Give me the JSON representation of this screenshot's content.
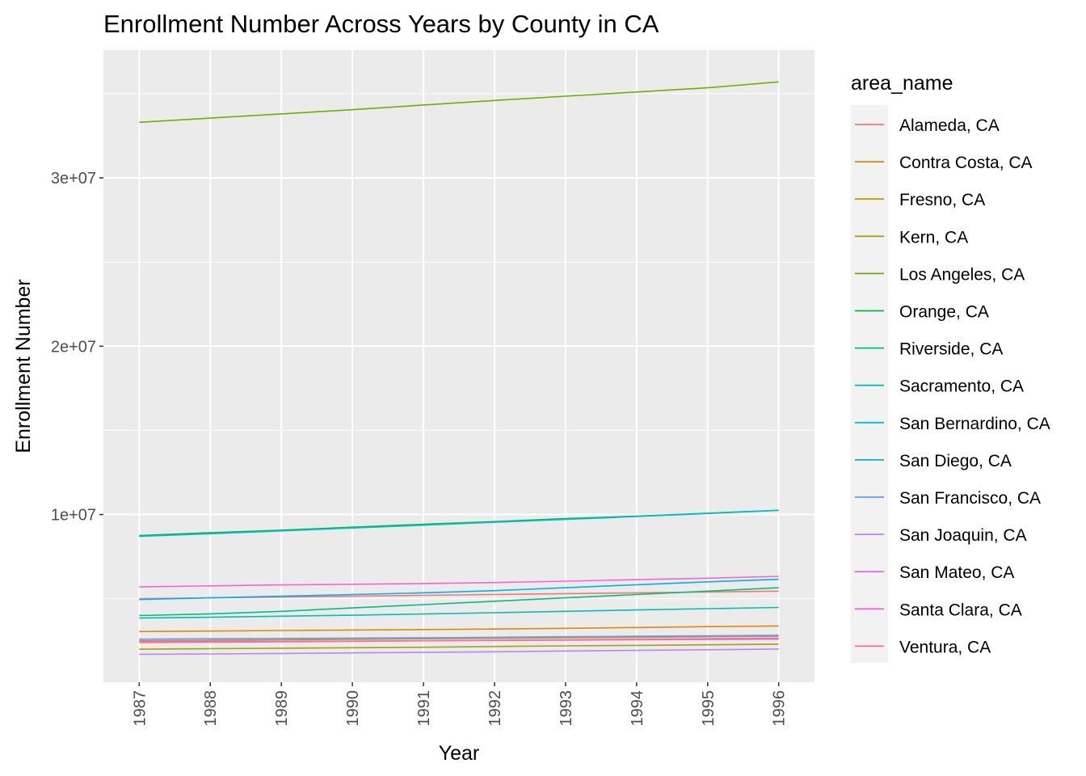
{
  "chart_data": {
    "type": "line",
    "title": "Enrollment Number Across Years by County in CA",
    "xlabel": "Year",
    "ylabel": "Enrollment Number",
    "x": [
      1987,
      1988,
      1989,
      1990,
      1991,
      1992,
      1993,
      1994,
      1995,
      1996
    ],
    "x_tick_labels": [
      "1987",
      "1988",
      "1989",
      "1990",
      "1991",
      "1992",
      "1993",
      "1994",
      "1995",
      "1996"
    ],
    "y_ticks": [
      10000000,
      20000000,
      30000000
    ],
    "y_tick_labels": [
      "1e+07",
      "2e+07",
      "3e+07"
    ],
    "ylim": [
      0,
      36000000
    ],
    "grid": true,
    "legend_title": "area_name",
    "legend_position": "right",
    "series": [
      {
        "name": "Alameda, CA",
        "color": "#F8766D",
        "values": [
          5000000,
          5050000,
          5100000,
          5150000,
          5200000,
          5250000,
          5300000,
          5350000,
          5400000,
          5450000
        ]
      },
      {
        "name": "Contra Costa, CA",
        "color": "#E58700",
        "values": [
          3050000,
          3080000,
          3110000,
          3140000,
          3170000,
          3200000,
          3240000,
          3290000,
          3340000,
          3380000
        ]
      },
      {
        "name": "Fresno, CA",
        "color": "#C99800",
        "values": [
          2500000,
          2530000,
          2560000,
          2590000,
          2620000,
          2650000,
          2680000,
          2710000,
          2740000,
          2770000
        ]
      },
      {
        "name": "Kern, CA",
        "color": "#A3A500",
        "values": [
          2000000,
          2030000,
          2060000,
          2090000,
          2120000,
          2160000,
          2200000,
          2230000,
          2260000,
          2300000
        ]
      },
      {
        "name": "Los Angeles, CA",
        "color": "#6BB100",
        "values": [
          33300000,
          33550000,
          33800000,
          34050000,
          34330000,
          34600000,
          34850000,
          35100000,
          35350000,
          35700000
        ]
      },
      {
        "name": "Orange, CA",
        "color": "#00BA38",
        "values": [
          8750000,
          8920000,
          9070000,
          9250000,
          9420000,
          9580000,
          9760000,
          9900000,
          10080000,
          10250000
        ]
      },
      {
        "name": "Riverside, CA",
        "color": "#00BF7D",
        "values": [
          4000000,
          4100000,
          4250000,
          4450000,
          4650000,
          4850000,
          5050000,
          5250000,
          5450000,
          5650000
        ]
      },
      {
        "name": "Sacramento, CA",
        "color": "#00C0AF",
        "values": [
          3850000,
          3900000,
          3960000,
          4020000,
          4090000,
          4170000,
          4250000,
          4330000,
          4410000,
          4480000
        ]
      },
      {
        "name": "San Bernardino, CA",
        "color": "#00BCD8",
        "values": [
          8700000,
          8860000,
          9030000,
          9200000,
          9370000,
          9540000,
          9710000,
          9880000,
          10060000,
          10250000
        ]
      },
      {
        "name": "San Diego, CA",
        "color": "#00B0F6",
        "values": [
          4950000,
          5050000,
          5150000,
          5250000,
          5350000,
          5480000,
          5650000,
          5830000,
          6000000,
          6150000
        ]
      },
      {
        "name": "San Francisco, CA",
        "color": "#619CFF",
        "values": [
          2600000,
          2620000,
          2640000,
          2660000,
          2680000,
          2710000,
          2740000,
          2770000,
          2800000,
          2830000
        ]
      },
      {
        "name": "San Joaquin, CA",
        "color": "#B983FF",
        "values": [
          1700000,
          1720000,
          1750000,
          1780000,
          1810000,
          1850000,
          1890000,
          1930000,
          1970000,
          2010000
        ]
      },
      {
        "name": "San Mateo, CA",
        "color": "#E76BF3",
        "values": [
          2450000,
          2460000,
          2470000,
          2480000,
          2500000,
          2520000,
          2540000,
          2560000,
          2580000,
          2600000
        ]
      },
      {
        "name": "Santa Clara, CA",
        "color": "#FD61D1",
        "values": [
          5700000,
          5760000,
          5820000,
          5860000,
          5900000,
          5960000,
          6040000,
          6130000,
          6220000,
          6330000
        ]
      },
      {
        "name": "Ventura, CA",
        "color": "#FF67A4",
        "values": [
          2400000,
          2420000,
          2440000,
          2470000,
          2500000,
          2530000,
          2560000,
          2590000,
          2620000,
          2650000
        ]
      }
    ]
  }
}
